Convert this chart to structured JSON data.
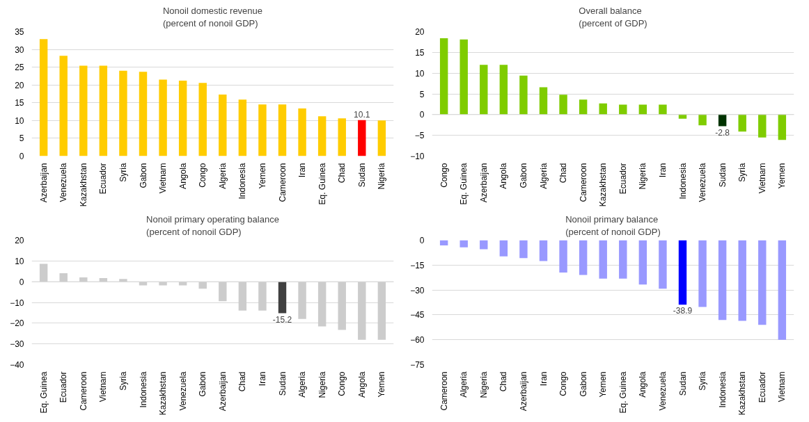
{
  "chart_data": [
    {
      "type": "bar",
      "title": "Nonoil domestic revenue\n(percent of nonoil GDP)",
      "categories": [
        "Azerbaijan",
        "Venezuela",
        "Kazakhstan",
        "Ecuador",
        "Syria",
        "Gabon",
        "Vietnam",
        "Angola",
        "Congo",
        "Algeria",
        "Indonesia",
        "Yemen",
        "Cameroon",
        "Iran",
        "Eq. Guinea",
        "Chad",
        "Sudan",
        "Nigeria"
      ],
      "values": [
        32.9,
        28.2,
        25.4,
        25.4,
        24.0,
        23.7,
        21.5,
        21.2,
        20.6,
        17.3,
        15.9,
        14.5,
        14.5,
        13.4,
        11.2,
        10.6,
        10.1,
        10.0
      ],
      "colors": [
        "#ffcc00",
        "#ffcc00",
        "#ffcc00",
        "#ffcc00",
        "#ffcc00",
        "#ffcc00",
        "#ffcc00",
        "#ffcc00",
        "#ffcc00",
        "#ffcc00",
        "#ffcc00",
        "#ffcc00",
        "#ffcc00",
        "#ffcc00",
        "#ffcc00",
        "#ffcc00",
        "#ff0000",
        "#ffcc00"
      ],
      "value_labels": [
        null,
        null,
        null,
        null,
        null,
        null,
        null,
        null,
        null,
        null,
        null,
        null,
        null,
        null,
        null,
        null,
        "10.1",
        null
      ],
      "ylim": [
        0,
        35
      ],
      "yticks": [
        0,
        5,
        10,
        15,
        20,
        25,
        30,
        35
      ],
      "grid": "y"
    },
    {
      "type": "bar",
      "title": "Overall balance\n(percent of GDP)",
      "categories": [
        "Congo",
        "Eq. Guinea",
        "Azerbaijan",
        "Angola",
        "Gabon",
        "Algeria",
        "Chad",
        "Cameroon",
        "Kazakhstan",
        "Ecuador",
        "Nigeria",
        "Iran",
        "Indonesia",
        "Venezuela",
        "Sudan",
        "Syria",
        "Vietnam",
        "Yemen"
      ],
      "values": [
        18.4,
        18.1,
        12.0,
        12.0,
        9.4,
        6.6,
        4.8,
        3.6,
        2.7,
        2.4,
        2.4,
        2.4,
        -1.0,
        -2.6,
        -2.8,
        -4.1,
        -5.5,
        -6.1
      ],
      "colors": [
        "#7fcc00",
        "#7fcc00",
        "#7fcc00",
        "#7fcc00",
        "#7fcc00",
        "#7fcc00",
        "#7fcc00",
        "#7fcc00",
        "#7fcc00",
        "#7fcc00",
        "#7fcc00",
        "#7fcc00",
        "#7fcc00",
        "#7fcc00",
        "#003300",
        "#7fcc00",
        "#7fcc00",
        "#7fcc00"
      ],
      "value_labels": [
        null,
        null,
        null,
        null,
        null,
        null,
        null,
        null,
        null,
        null,
        null,
        null,
        null,
        null,
        "-2.8",
        null,
        null,
        null
      ],
      "ylim": [
        -10,
        20
      ],
      "yticks": [
        -10,
        -5,
        0,
        5,
        10,
        15,
        20
      ],
      "grid": "y"
    },
    {
      "type": "bar",
      "title": "Nonoil primary operating balance\n(percent of nonoil GDP)",
      "categories": [
        "Eq. Guinea",
        "Ecuador",
        "Cameroon",
        "Vietnam",
        "Syria",
        "Indonesia",
        "Kazakhstan",
        "Venezuela",
        "Gabon",
        "Azerbaijan",
        "Chad",
        "Iran",
        "Sudan",
        "Algeria",
        "Nigeria",
        "Congo",
        "Angola",
        "Yemen"
      ],
      "values": [
        8.6,
        4.1,
        2.1,
        1.7,
        1.3,
        -1.8,
        -1.8,
        -1.8,
        -3.4,
        -9.4,
        -13.9,
        -13.9,
        -15.2,
        -18.0,
        -21.6,
        -23.2,
        -28.0,
        -28.0
      ],
      "colors": [
        "#cccccc",
        "#cccccc",
        "#cccccc",
        "#cccccc",
        "#cccccc",
        "#cccccc",
        "#cccccc",
        "#cccccc",
        "#cccccc",
        "#cccccc",
        "#cccccc",
        "#cccccc",
        "#404040",
        "#cccccc",
        "#cccccc",
        "#cccccc",
        "#cccccc",
        "#cccccc"
      ],
      "value_labels": [
        null,
        null,
        null,
        null,
        null,
        null,
        null,
        null,
        null,
        null,
        null,
        null,
        "-15.2",
        null,
        null,
        null,
        null,
        null
      ],
      "ylim": [
        -40,
        20
      ],
      "yticks": [
        -40,
        -30,
        -20,
        -10,
        0,
        10,
        20
      ],
      "grid": "y"
    },
    {
      "type": "bar",
      "title": "Nonoil primary balance\n(percent of nonoil GDP)",
      "categories": [
        "Cameroon",
        "Algeria",
        "Nigeria",
        "Chad",
        "Azerbaijan",
        "Iran",
        "Congo",
        "Gabon",
        "Yemen",
        "Eq. Guinea",
        "Angola",
        "Venezuela",
        "Sudan",
        "Syria",
        "Indonesia",
        "Kazakhstan",
        "Ecuador",
        "Vietnam"
      ],
      "values": [
        -3.1,
        -4.3,
        -5.4,
        -9.7,
        -10.8,
        -12.6,
        -19.5,
        -20.9,
        -23.2,
        -23.2,
        -26.7,
        -29.2,
        -38.9,
        -40.2,
        -48.1,
        -48.6,
        -51.0,
        -60.0
      ],
      "colors": [
        "#9999ff",
        "#9999ff",
        "#9999ff",
        "#9999ff",
        "#9999ff",
        "#9999ff",
        "#9999ff",
        "#9999ff",
        "#9999ff",
        "#9999ff",
        "#9999ff",
        "#9999ff",
        "#0000ff",
        "#9999ff",
        "#9999ff",
        "#9999ff",
        "#9999ff",
        "#9999ff"
      ],
      "value_labels": [
        null,
        null,
        null,
        null,
        null,
        null,
        null,
        null,
        null,
        null,
        null,
        null,
        "-38.9",
        null,
        null,
        null,
        null,
        null
      ],
      "ylim": [
        -75,
        0
      ],
      "yticks": [
        -75,
        -60,
        -45,
        -30,
        -15,
        0
      ],
      "grid": "y"
    }
  ]
}
